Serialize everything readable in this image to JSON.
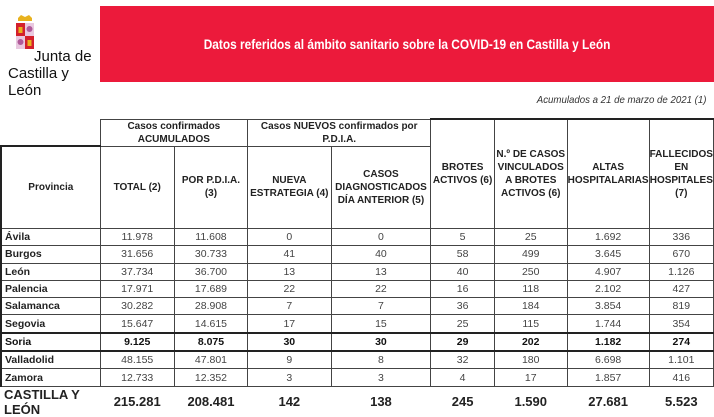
{
  "logo": {
    "text_line1": "Junta de",
    "text_line2": "Castilla y León",
    "colors": {
      "red": "#d4202c",
      "gold": "#e8b21e",
      "purple": "#b05a9a"
    }
  },
  "banner": {
    "title": "Datos referidos al ámbito sanitario sobre la COVID-19 en Castilla y León",
    "color": "#ec1a3b"
  },
  "subtitle": "Acumulados a 21 de marzo de 2021 (1)",
  "table": {
    "group_headers": [
      "Casos confirmados ACUMULADOS",
      "Casos NUEVOS confirmados por P.D.I.A."
    ],
    "columns": [
      "Provincia",
      "TOTAL (2)",
      "POR P.D.I.A. (3)",
      "NUEVA ESTRATEGIA (4)",
      "CASOS DIAGNOSTICADOS DÍA ANTERIOR (5)",
      "BROTES ACTIVOS (6)",
      "N.º DE CASOS VINCULADOS A BROTES ACTIVOS (6)",
      "ALTAS HOSPITALARIAS",
      "FALLECIDOS EN HOSPITALES (7)"
    ],
    "rows": [
      [
        "Ávila",
        "11.978",
        "11.608",
        "0",
        "0",
        "5",
        "25",
        "1.692",
        "336"
      ],
      [
        "Burgos",
        "31.656",
        "30.733",
        "41",
        "40",
        "58",
        "499",
        "3.645",
        "670"
      ],
      [
        "León",
        "37.734",
        "36.700",
        "13",
        "13",
        "40",
        "250",
        "4.907",
        "1.126"
      ],
      [
        "Palencia",
        "17.971",
        "17.689",
        "22",
        "22",
        "16",
        "118",
        "2.102",
        "427"
      ],
      [
        "Salamanca",
        "30.282",
        "28.908",
        "7",
        "7",
        "36",
        "184",
        "3.854",
        "819"
      ],
      [
        "Segovia",
        "15.647",
        "14.615",
        "17",
        "15",
        "25",
        "115",
        "1.744",
        "354"
      ],
      [
        "Soria",
        "9.125",
        "8.075",
        "30",
        "30",
        "29",
        "202",
        "1.182",
        "274"
      ],
      [
        "Valladolid",
        "48.155",
        "47.801",
        "9",
        "8",
        "32",
        "180",
        "6.698",
        "1.101"
      ],
      [
        "Zamora",
        "12.733",
        "12.352",
        "3",
        "3",
        "4",
        "17",
        "1.857",
        "416"
      ]
    ],
    "total": [
      "CASTILLA Y LEÓN",
      "215.281",
      "208.481",
      "142",
      "138",
      "245",
      "1.590",
      "27.681",
      "5.523"
    ]
  }
}
